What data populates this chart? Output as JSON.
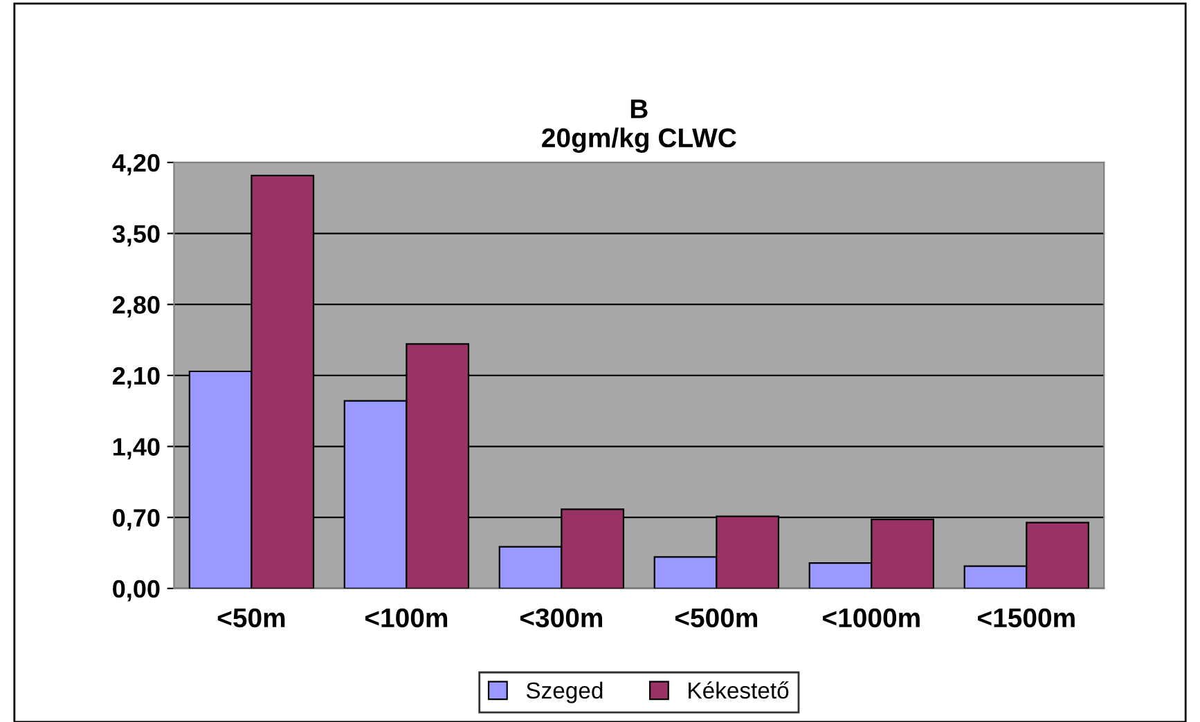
{
  "chart_data": {
    "type": "bar",
    "title": "B\n20gm/kg CLWC",
    "categories": [
      "<50m",
      "<100m",
      "<300m",
      "<500m",
      "<1000m",
      "<1500m"
    ],
    "series": [
      {
        "name": "Szeged",
        "color": "#9999ff",
        "values": [
          2.14,
          1.85,
          0.41,
          0.31,
          0.25,
          0.22
        ]
      },
      {
        "name": "Kékestető",
        "color": "#993366",
        "values": [
          4.07,
          2.41,
          0.78,
          0.71,
          0.68,
          0.65
        ]
      }
    ],
    "ylim": [
      0,
      4.2
    ],
    "yticks": [
      {
        "value": 0,
        "label": "0,00"
      },
      {
        "value": 0.7,
        "label": "0,70"
      },
      {
        "value": 1.4,
        "label": "1,40"
      },
      {
        "value": 2.1,
        "label": "2,10"
      },
      {
        "value": 2.8,
        "label": "2,80"
      },
      {
        "value": 3.5,
        "label": "3,50"
      },
      {
        "value": 4.2,
        "label": "4,20"
      }
    ],
    "grid": "y",
    "legend": "bottom"
  }
}
